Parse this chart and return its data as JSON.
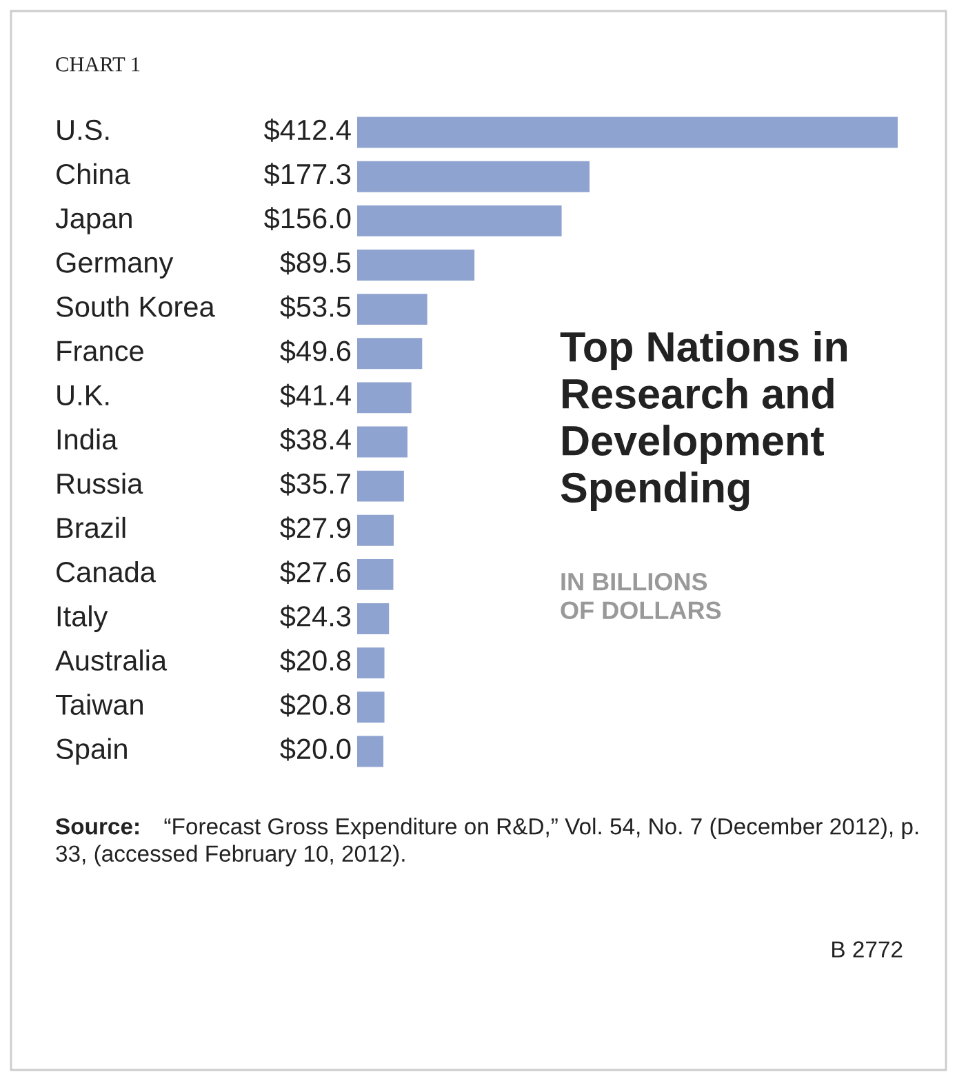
{
  "chart_data": {
    "type": "bar",
    "orientation": "horizontal",
    "title": "Top Nations in Research and Development Spending",
    "subtitle": "IN BILLIONS OF DOLLARS",
    "categories": [
      "U.S.",
      "China",
      "Japan",
      "Germany",
      "South Korea",
      "France",
      "U.K.",
      "India",
      "Russia",
      "Brazil",
      "Canada",
      "Italy",
      "Australia",
      "Taiwan",
      "Spain"
    ],
    "values": [
      412.4,
      177.3,
      156.0,
      89.5,
      53.5,
      49.6,
      41.4,
      38.4,
      35.7,
      27.9,
      27.6,
      24.3,
      20.8,
      20.8,
      20.0
    ],
    "value_labels": [
      "$412.4",
      "$177.3",
      "$156.0",
      "$89.5",
      "$53.5",
      "$49.6",
      "$41.4",
      "$38.4",
      "$35.7",
      "$27.9",
      "$27.6",
      "$24.3",
      "$20.8",
      "$20.8",
      "$20.0"
    ],
    "color": "#8fa3d0",
    "annotations": [
      "CHART 1",
      "Source: “Forecast Gross Expenditure on R&D,” Vol. 54, No. 7 (December 2012), p. 33, (accessed February 10, 2012).",
      "B 2772"
    ]
  }
}
